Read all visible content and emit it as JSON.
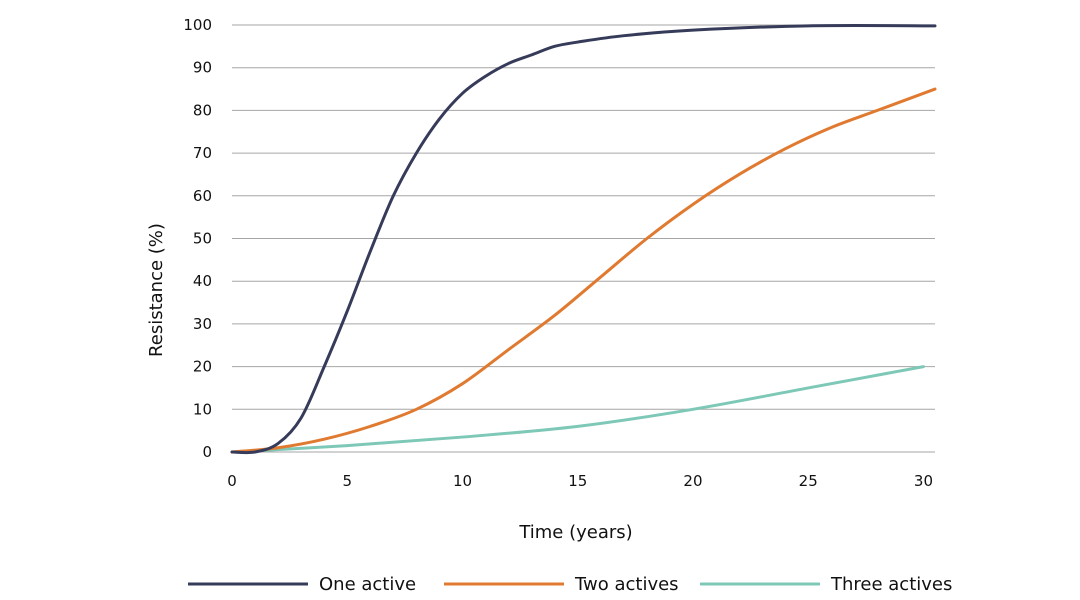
{
  "chart_data": {
    "type": "line",
    "title": "",
    "xlabel": "Time (years)",
    "ylabel": "Resistance (%)",
    "xlim": [
      0,
      30.5
    ],
    "ylim": [
      0,
      100
    ],
    "x_ticks": [
      0,
      5,
      10,
      15,
      20,
      25,
      30
    ],
    "y_ticks": [
      0,
      10,
      20,
      30,
      40,
      50,
      60,
      70,
      80,
      90,
      100
    ],
    "grid": "horizontal",
    "legend_position": "bottom",
    "series": [
      {
        "name": "One active",
        "color": "#363b5a",
        "points": [
          [
            0,
            0
          ],
          [
            1,
            0
          ],
          [
            2,
            2
          ],
          [
            3,
            8
          ],
          [
            4,
            20
          ],
          [
            5,
            33
          ],
          [
            6,
            47
          ],
          [
            7,
            60
          ],
          [
            8,
            70
          ],
          [
            9,
            78
          ],
          [
            10,
            84
          ],
          [
            11,
            88
          ],
          [
            12,
            91
          ],
          [
            13,
            93
          ],
          [
            14,
            95
          ],
          [
            15,
            96
          ],
          [
            17,
            97.5
          ],
          [
            20,
            98.8
          ],
          [
            25,
            99.8
          ],
          [
            30.5,
            99.8
          ]
        ]
      },
      {
        "name": "Two actives",
        "color": "#e07a30",
        "points": [
          [
            0,
            0
          ],
          [
            2,
            1
          ],
          [
            4,
            3
          ],
          [
            6,
            6
          ],
          [
            8,
            10
          ],
          [
            10,
            16
          ],
          [
            12,
            24
          ],
          [
            14,
            32
          ],
          [
            16,
            41
          ],
          [
            18,
            50
          ],
          [
            20,
            58
          ],
          [
            22,
            65
          ],
          [
            24,
            71
          ],
          [
            26,
            76
          ],
          [
            28,
            80
          ],
          [
            30.5,
            85
          ]
        ]
      },
      {
        "name": "Three actives",
        "color": "#7ec8b8",
        "points": [
          [
            0,
            0
          ],
          [
            5,
            1.5
          ],
          [
            10,
            3.5
          ],
          [
            15,
            6
          ],
          [
            20,
            10
          ],
          [
            25,
            15
          ],
          [
            30,
            20
          ]
        ]
      }
    ]
  }
}
